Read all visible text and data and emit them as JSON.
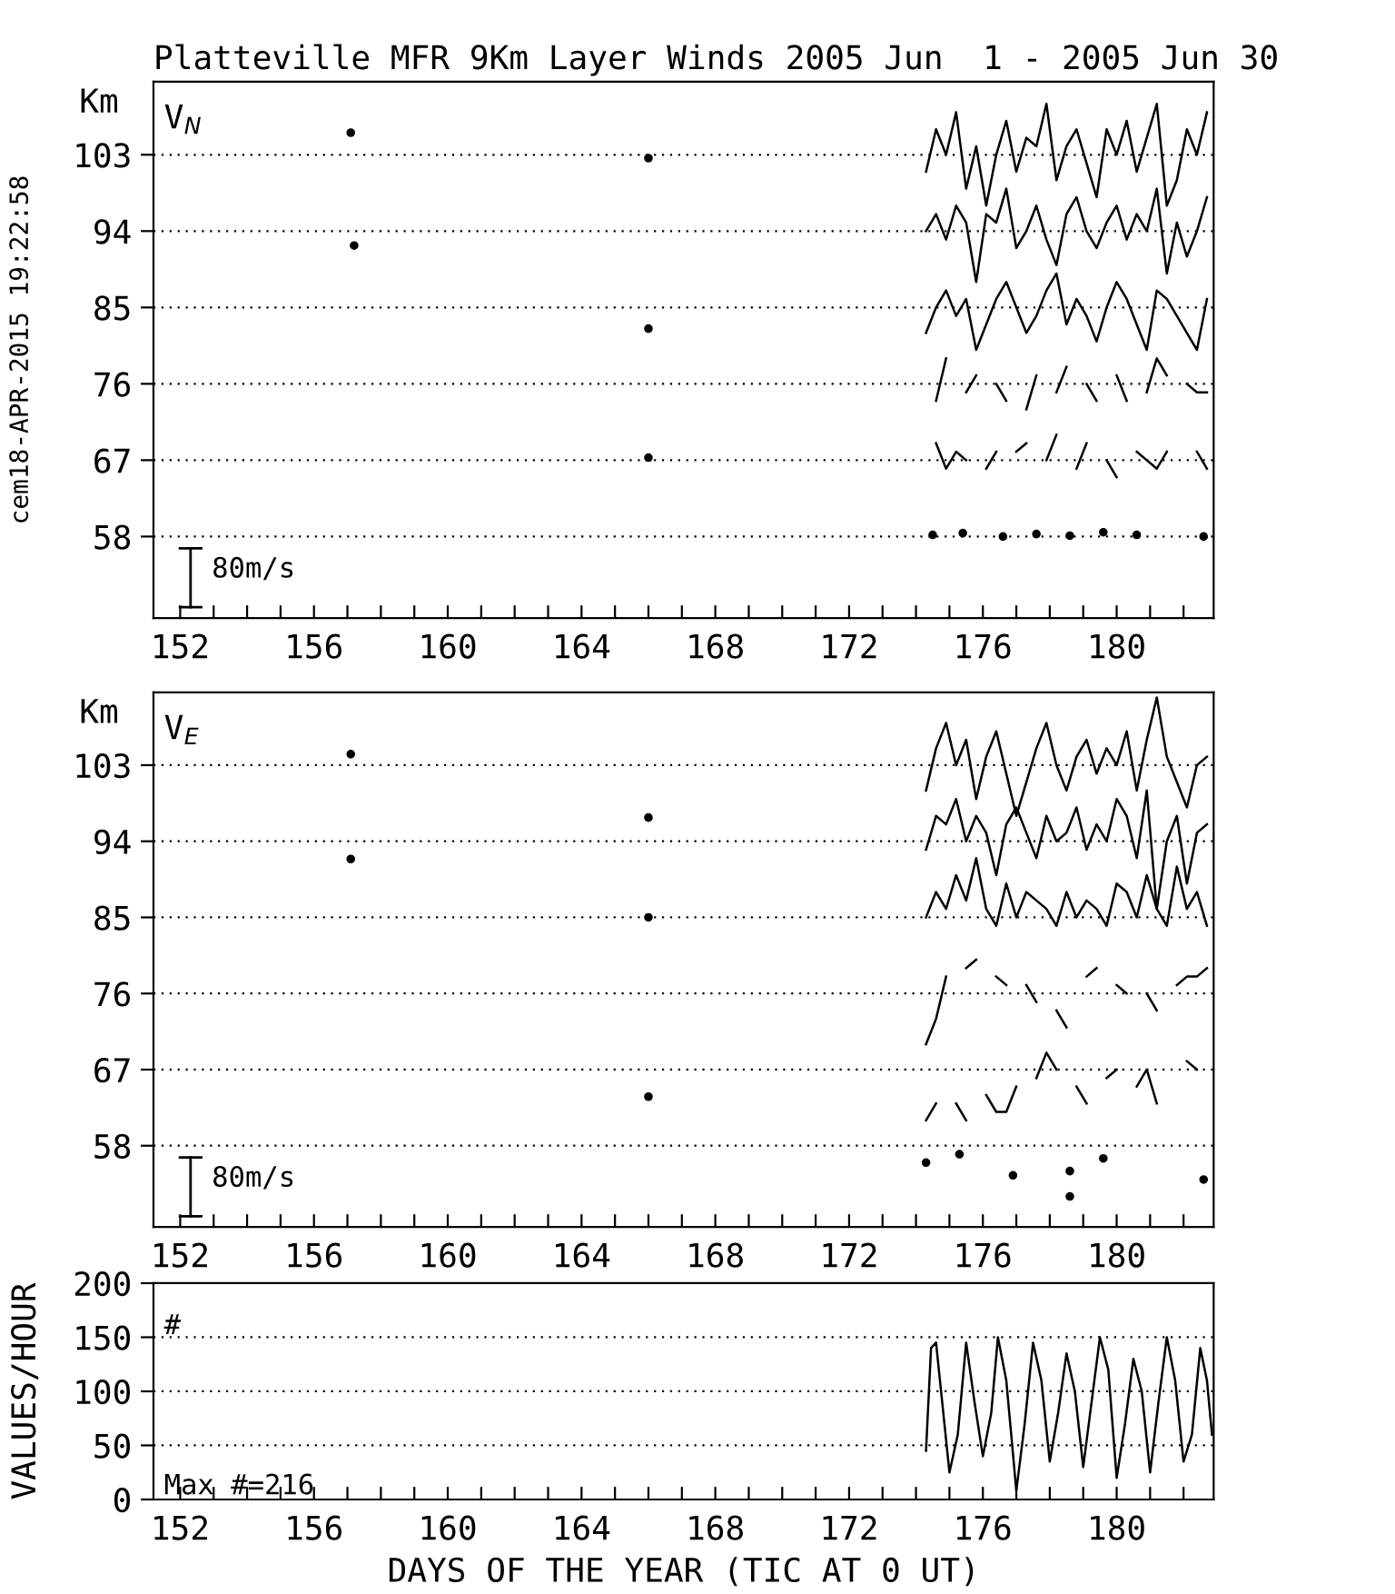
{
  "chart_data": [
    {
      "type": "line",
      "title": "Platteville MFR 9Km Layer Winds 2005 Jun  1 - 2005 Jun 30",
      "ylabel": "Km",
      "grid": "y",
      "line_style": "solid",
      "annotations": [
        "V$_{N}$",
        "80m/s",
        "cem18-APR-2015 19:22:58"
      ],
      "xlim": [
        151.2,
        182.9
      ],
      "ylim": [
        48.4,
        111.6
      ],
      "xticks": [
        152,
        {
          "value": 153,
          "label": null
        },
        {
          "value": 154,
          "label": null
        },
        {
          "value": 155,
          "label": null
        },
        156,
        {
          "value": 157,
          "label": null
        },
        {
          "value": 158,
          "label": null
        },
        {
          "value": 159,
          "label": null
        },
        160,
        {
          "value": 161,
          "label": null
        },
        {
          "value": 162,
          "label": null
        },
        {
          "value": 163,
          "label": null
        },
        164,
        {
          "value": 165,
          "label": null
        },
        {
          "value": 166,
          "label": null
        },
        {
          "value": 167,
          "label": null
        },
        168,
        {
          "value": 169,
          "label": null
        },
        {
          "value": 170,
          "label": null
        },
        {
          "value": 171,
          "label": null
        },
        172,
        {
          "value": 173,
          "label": null
        },
        {
          "value": 174,
          "label": null
        },
        {
          "value": 175,
          "label": null
        },
        176,
        {
          "value": 177,
          "label": null
        },
        {
          "value": 178,
          "label": null
        },
        {
          "value": 179,
          "label": null
        },
        180,
        {
          "value": 181,
          "label": null
        },
        {
          "value": 182,
          "label": null
        }
      ],
      "yticks": [
        58,
        67,
        76,
        85,
        94,
        103
      ],
      "x": [
        174.3,
        174.6,
        174.9,
        175.2,
        175.5,
        175.8,
        176.1,
        176.4,
        176.7,
        177.0,
        177.3,
        177.6,
        177.9,
        178.2,
        178.5,
        178.8,
        179.1,
        179.4,
        179.7,
        180.0,
        180.3,
        180.6,
        180.9,
        181.2,
        181.5,
        181.8,
        182.1,
        182.4,
        182.7
      ],
      "series": [
        {
          "color": "#000000",
          "values": [
            101,
            106,
            103,
            108,
            99,
            104,
            97,
            103,
            107,
            101,
            105,
            104,
            109,
            100,
            104,
            106,
            102,
            98,
            106,
            103,
            107,
            101,
            105,
            109,
            97,
            100,
            106,
            103,
            108
          ]
        },
        {
          "color": "#000000",
          "values": [
            94,
            96,
            93,
            97,
            95,
            88,
            96,
            95,
            99,
            92,
            94,
            97,
            93,
            90,
            96,
            98,
            94,
            92,
            95,
            97,
            93,
            96,
            94,
            99,
            89,
            95,
            91,
            94,
            98
          ]
        },
        {
          "color": "#000000",
          "values": [
            82,
            85,
            87,
            84,
            86,
            80,
            83,
            86,
            88,
            85,
            82,
            84,
            87,
            89,
            83,
            86,
            84,
            81,
            85,
            88,
            86,
            83,
            80,
            87,
            86,
            84,
            82,
            80,
            86
          ]
        },
        {
          "color": "#000000",
          "values": [
            null,
            74,
            79,
            null,
            75,
            77,
            null,
            76,
            74,
            null,
            73,
            77,
            null,
            75,
            78,
            null,
            76,
            74,
            null,
            77,
            74,
            null,
            75,
            79,
            77,
            null,
            76,
            75,
            75
          ]
        },
        {
          "color": "#000000",
          "values": [
            null,
            69,
            66,
            68,
            67,
            null,
            66,
            68,
            null,
            68,
            69,
            null,
            67,
            70,
            null,
            66,
            69,
            null,
            67,
            65,
            null,
            68,
            67,
            66,
            68,
            null,
            null,
            68,
            66
          ]
        },
        {
          "type": "scatter",
          "marker": "circle",
          "color": "#000000",
          "x": [
            157.1,
            157.2,
            166.0,
            166.0,
            166.0,
            174.5,
            175.4,
            176.6,
            177.6,
            178.6,
            179.6,
            180.6,
            182.6
          ],
          "values": [
            105.6,
            92.3,
            102.6,
            82.5,
            67.3,
            58.2,
            58.4,
            58.0,
            58.3,
            58.1,
            58.5,
            58.2,
            58.0
          ]
        }
      ]
    },
    {
      "type": "line",
      "ylabel": "Km",
      "grid": "y",
      "line_style": "solid",
      "annotations": [
        "V$_{E}$",
        "80m/s"
      ],
      "xlim": [
        151.2,
        182.9
      ],
      "ylim": [
        48.4,
        111.6
      ],
      "xticks": [
        152,
        {
          "value": 153,
          "label": null
        },
        {
          "value": 154,
          "label": null
        },
        {
          "value": 155,
          "label": null
        },
        156,
        {
          "value": 157,
          "label": null
        },
        {
          "value": 158,
          "label": null
        },
        {
          "value": 159,
          "label": null
        },
        160,
        {
          "value": 161,
          "label": null
        },
        {
          "value": 162,
          "label": null
        },
        {
          "value": 163,
          "label": null
        },
        164,
        {
          "value": 165,
          "label": null
        },
        {
          "value": 166,
          "label": null
        },
        {
          "value": 167,
          "label": null
        },
        168,
        {
          "value": 169,
          "label": null
        },
        {
          "value": 170,
          "label": null
        },
        {
          "value": 171,
          "label": null
        },
        172,
        {
          "value": 173,
          "label": null
        },
        {
          "value": 174,
          "label": null
        },
        {
          "value": 175,
          "label": null
        },
        176,
        {
          "value": 177,
          "label": null
        },
        {
          "value": 178,
          "label": null
        },
        {
          "value": 179,
          "label": null
        },
        180,
        {
          "value": 181,
          "label": null
        },
        {
          "value": 182,
          "label": null
        }
      ],
      "yticks": [
        58,
        67,
        76,
        85,
        94,
        103
      ],
      "x": [
        174.3,
        174.6,
        174.9,
        175.2,
        175.5,
        175.8,
        176.1,
        176.4,
        176.7,
        177.0,
        177.3,
        177.6,
        177.9,
        178.2,
        178.5,
        178.8,
        179.1,
        179.4,
        179.7,
        180.0,
        180.3,
        180.6,
        180.9,
        181.2,
        181.5,
        181.8,
        182.1,
        182.4,
        182.7
      ],
      "series": [
        {
          "color": "#000000",
          "values": [
            100,
            105,
            108,
            103,
            106,
            99,
            104,
            107,
            102,
            97,
            101,
            105,
            108,
            103,
            100,
            104,
            106,
            102,
            105,
            103,
            107,
            100,
            106,
            111,
            104,
            101,
            98,
            103,
            104
          ]
        },
        {
          "color": "#000000",
          "values": [
            93,
            97,
            96,
            99,
            94,
            97,
            95,
            90,
            96,
            98,
            95,
            92,
            97,
            94,
            95,
            98,
            93,
            96,
            94,
            99,
            97,
            92,
            100,
            86,
            94,
            97,
            89,
            95,
            96
          ]
        },
        {
          "color": "#000000",
          "values": [
            85,
            88,
            86,
            90,
            87,
            92,
            86,
            84,
            89,
            85,
            88,
            87,
            86,
            84,
            88,
            85,
            87,
            86,
            84,
            89,
            88,
            85,
            90,
            86,
            84,
            91,
            86,
            88,
            84
          ]
        },
        {
          "color": "#000000",
          "values": [
            70,
            73,
            78,
            null,
            79,
            80,
            null,
            78,
            77,
            null,
            77,
            75,
            null,
            74,
            72,
            null,
            78,
            79,
            null,
            77,
            76,
            null,
            76,
            74,
            null,
            77,
            78,
            78,
            79
          ]
        },
        {
          "color": "#000000",
          "values": [
            61,
            63,
            null,
            63,
            61,
            null,
            64,
            62,
            62,
            65,
            null,
            66,
            69,
            67,
            null,
            65,
            63,
            null,
            66,
            67,
            null,
            65,
            67,
            63,
            null,
            null,
            68,
            67,
            null
          ]
        },
        {
          "type": "scatter",
          "marker": "circle",
          "color": "#000000",
          "x": [
            157.1,
            157.1,
            166.0,
            166.0,
            166.0,
            174.3,
            175.3,
            176.9,
            178.6,
            178.6,
            179.6,
            182.6
          ],
          "values": [
            104.3,
            91.9,
            96.8,
            85.0,
            63.8,
            56.0,
            57.0,
            54.5,
            55.0,
            52.0,
            56.5,
            54.0
          ]
        }
      ]
    },
    {
      "type": "line",
      "xlabel": "DAYS OF THE YEAR (TIC AT 0 UT)",
      "ylabel": "VALUES/HOUR",
      "grid": "y",
      "line_style": "solid",
      "annotations": [
        "#",
        "Max #=216"
      ],
      "xlim": [
        151.2,
        182.9
      ],
      "ylim": [
        0,
        200
      ],
      "xticks": [
        152,
        {
          "value": 153,
          "label": null
        },
        {
          "value": 154,
          "label": null
        },
        {
          "value": 155,
          "label": null
        },
        156,
        {
          "value": 157,
          "label": null
        },
        {
          "value": 158,
          "label": null
        },
        {
          "value": 159,
          "label": null
        },
        160,
        {
          "value": 161,
          "label": null
        },
        {
          "value": 162,
          "label": null
        },
        {
          "value": 163,
          "label": null
        },
        164,
        {
          "value": 165,
          "label": null
        },
        {
          "value": 166,
          "label": null
        },
        {
          "value": 167,
          "label": null
        },
        168,
        {
          "value": 169,
          "label": null
        },
        {
          "value": 170,
          "label": null
        },
        {
          "value": 171,
          "label": null
        },
        172,
        {
          "value": 173,
          "label": null
        },
        {
          "value": 174,
          "label": null
        },
        {
          "value": 175,
          "label": null
        },
        176,
        {
          "value": 177,
          "label": null
        },
        {
          "value": 178,
          "label": null
        },
        {
          "value": 179,
          "label": null
        },
        180,
        {
          "value": 181,
          "label": null
        },
        {
          "value": 182,
          "label": null
        }
      ],
      "yticks": [
        0,
        50,
        100,
        150,
        200
      ],
      "x": [
        174.3,
        174.45,
        174.6,
        174.75,
        175.0,
        175.25,
        175.5,
        175.75,
        176.0,
        176.25,
        176.45,
        176.7,
        177.0,
        177.25,
        177.5,
        177.75,
        178.0,
        178.25,
        178.5,
        178.75,
        179.0,
        179.25,
        179.5,
        179.75,
        180.0,
        180.25,
        180.5,
        180.75,
        181.0,
        181.25,
        181.5,
        181.75,
        182.0,
        182.25,
        182.5,
        182.7,
        182.85
      ],
      "series": [
        {
          "color": "#000000",
          "values": [
            45,
            140,
            145,
            100,
            25,
            60,
            145,
            90,
            40,
            80,
            150,
            110,
            8,
            70,
            145,
            110,
            35,
            80,
            135,
            100,
            30,
            90,
            150,
            120,
            20,
            70,
            130,
            100,
            25,
            90,
            150,
            110,
            35,
            60,
            140,
            110,
            60
          ]
        }
      ]
    }
  ]
}
